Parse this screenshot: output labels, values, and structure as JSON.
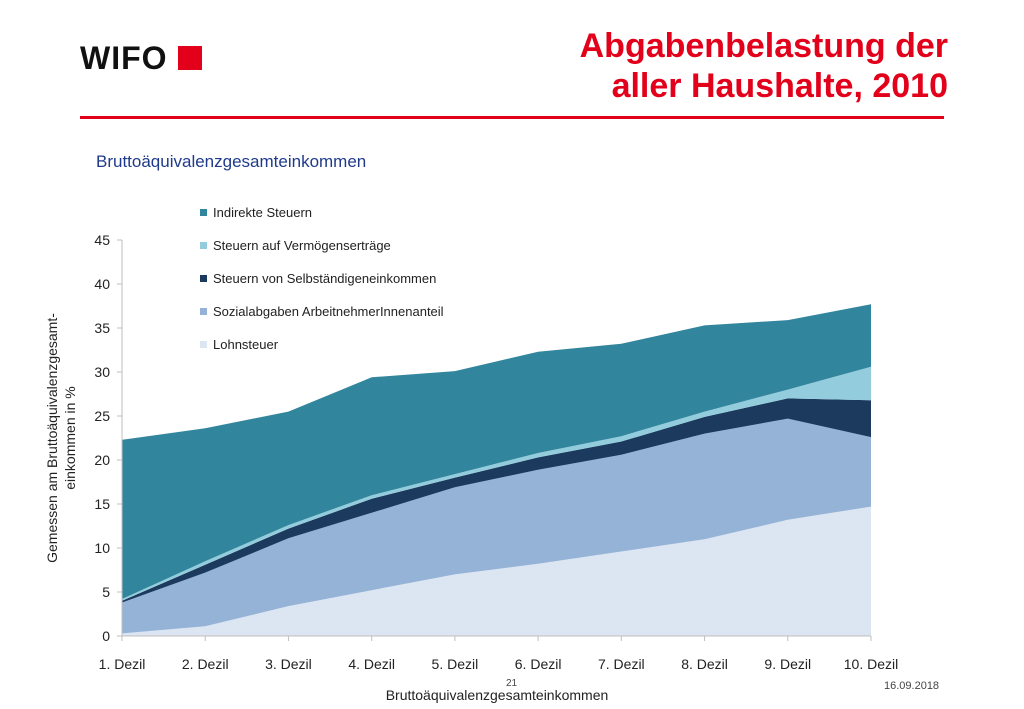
{
  "header": {
    "logo_text": "WIFO",
    "title_line1": "Abgabenbelastung der",
    "title_line2": "aller Haushalte, 2010"
  },
  "subtitle": "Bruttoäquivalenzgesamteinkommen",
  "footer": {
    "page_number": "21",
    "date": "16.09.2018"
  },
  "colors": {
    "brand_red": "#e2001a",
    "Lohnsteuer": "#dce6f2",
    "SozialabgabenArbeitnehmerInnenanteil": "#95b3d7",
    "SteuernVonSelbstaendigeneinkommen": "#1b3a5e",
    "SteuernAufVermoegensertraege": "#93cddd",
    "IndirekteSteuern": "#31859c"
  },
  "chart_data": {
    "type": "area",
    "stacked": true,
    "categories": [
      "1. Dezil",
      "2. Dezil",
      "3. Dezil",
      "4. Dezil",
      "5. Dezil",
      "6. Dezil",
      "7. Dezil",
      "8. Dezil",
      "9. Dezil",
      "10. Dezil"
    ],
    "xlabel": "Bruttoäquivalenzgesamteinkommen",
    "ylabel_line1": "Gemessen am Bruttoäquivalenzgesamt-",
    "ylabel_line2": "einkommen in %",
    "ylim": [
      0,
      45
    ],
    "yticks": [
      0,
      5,
      10,
      15,
      20,
      25,
      30,
      35,
      40,
      45
    ],
    "grid": false,
    "legend_position": "top-left",
    "legend_order": [
      "Indirekte Steuern",
      "Steuern auf Vermögenserträge",
      "Steuern von Selbständigeneinkommen",
      "Sozialabgaben ArbeitnehmerInnenanteil",
      "Lohnsteuer"
    ],
    "series": [
      {
        "name": "Lohnsteuer",
        "color": "#dce6f2",
        "values": [
          0.3,
          1.1,
          3.4,
          5.2,
          7.0,
          8.2,
          9.6,
          11.0,
          13.2,
          14.7
        ]
      },
      {
        "name": "Sozialabgaben ArbeitnehmerInnenanteil",
        "color": "#95b3d7",
        "values": [
          3.5,
          6.1,
          7.7,
          8.8,
          9.9,
          10.7,
          11.0,
          12.0,
          11.5,
          7.9
        ]
      },
      {
        "name": "Steuern von Selbständigeneinkommen",
        "color": "#1b3a5e",
        "values": [
          0.2,
          0.9,
          1.1,
          1.6,
          1.1,
          1.4,
          1.5,
          1.9,
          2.3,
          4.2
        ]
      },
      {
        "name": "Steuern auf Vermögenserträge",
        "color": "#93cddd",
        "values": [
          0.2,
          0.4,
          0.4,
          0.4,
          0.4,
          0.5,
          0.6,
          0.6,
          1.0,
          3.8
        ]
      },
      {
        "name": "Indirekte Steuern",
        "color": "#31859c",
        "values": [
          18.1,
          15.1,
          12.9,
          13.4,
          11.7,
          11.5,
          10.5,
          9.8,
          7.9,
          7.1
        ]
      }
    ]
  }
}
